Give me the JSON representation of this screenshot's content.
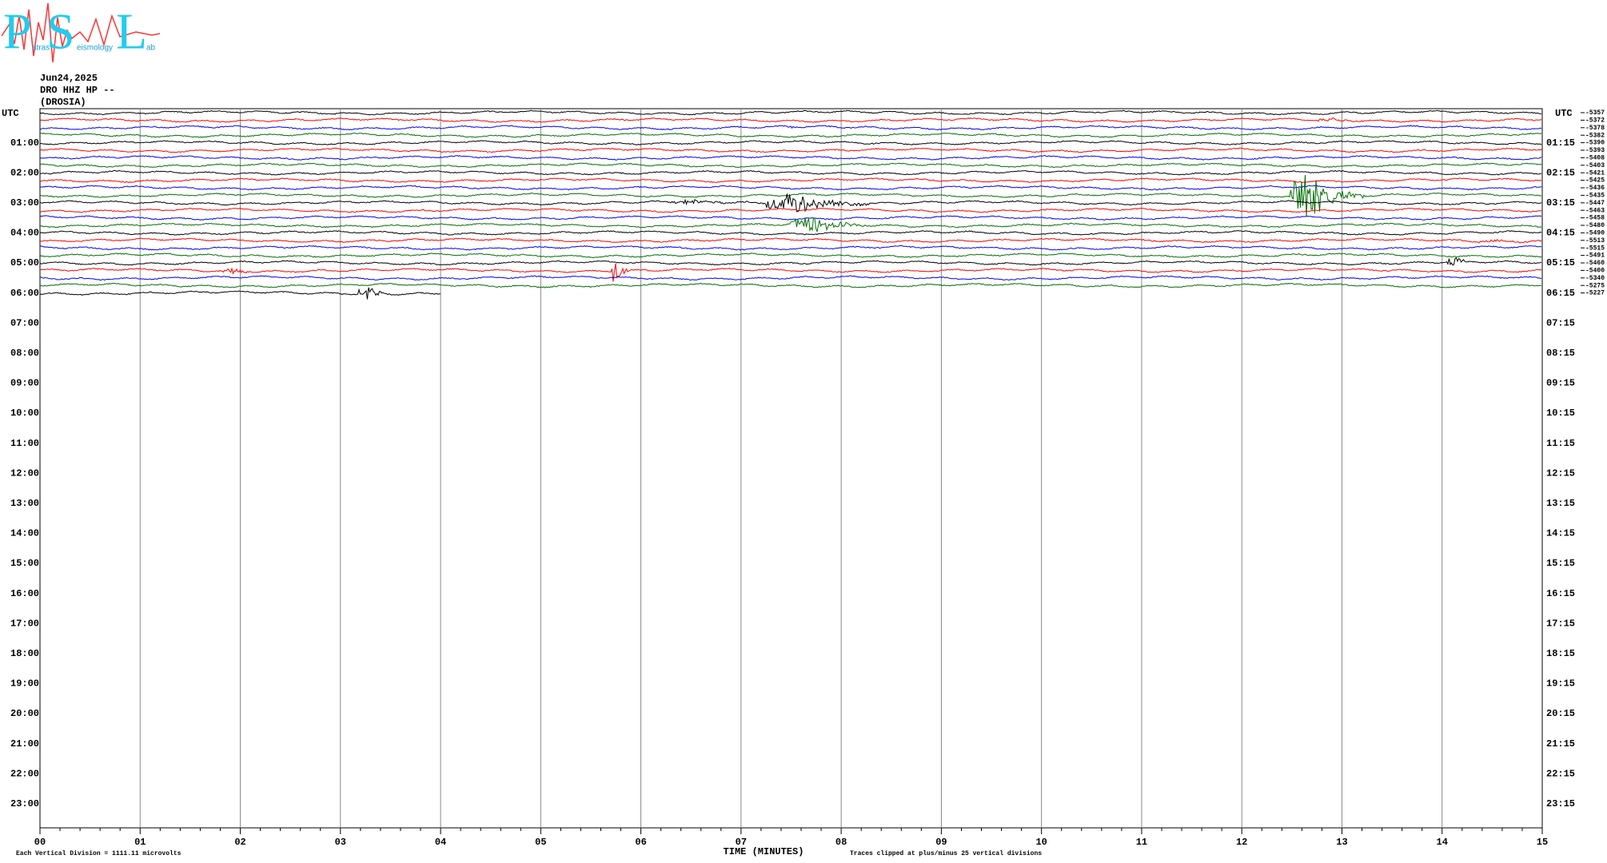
{
  "logo": {
    "letters": [
      "P",
      "S",
      "L"
    ],
    "words": [
      "atras",
      "eismology",
      "ab"
    ]
  },
  "chart_data": {
    "type": "helicorder",
    "date": "Jun24,2025",
    "station": "DRO HHZ HP --",
    "location": "(DROSIA)",
    "left_axis_title": "UTC",
    "right_axis_title": "UTC",
    "left_labels": [
      "01:00",
      "02:00",
      "03:00",
      "04:00",
      "05:00",
      "06:00",
      "07:00",
      "08:00",
      "09:00",
      "10:00",
      "11:00",
      "12:00",
      "13:00",
      "14:00",
      "15:00",
      "16:00",
      "17:00",
      "18:00",
      "19:00",
      "20:00",
      "21:00",
      "22:00",
      "23:00"
    ],
    "right_labels": [
      "01:15",
      "02:15",
      "03:15",
      "04:15",
      "05:15",
      "06:15",
      "07:15",
      "08:15",
      "09:15",
      "10:15",
      "11:15",
      "12:15",
      "13:15",
      "14:15",
      "15:15",
      "16:15",
      "17:15",
      "18:15",
      "19:15",
      "20:15",
      "21:15",
      "22:15",
      "23:15"
    ],
    "trace_offsets": [
      -5357,
      -5372,
      -5378,
      -5382,
      -5390,
      -5393,
      -5408,
      -5403,
      -5421,
      -5425,
      -5436,
      -5435,
      -5447,
      -5463,
      -5458,
      -5480,
      -5490,
      -5513,
      -5515,
      -5491,
      -5460,
      -5400,
      -5340,
      -5275,
      -5227
    ],
    "trace_colors": [
      "#000000",
      "#ff0000",
      "#0000ff",
      "#007000"
    ],
    "x_ticks": [
      "00",
      "01",
      "02",
      "03",
      "04",
      "05",
      "06",
      "07",
      "08",
      "09",
      "10",
      "11",
      "12",
      "13",
      "14",
      "15"
    ],
    "x_label": "TIME (MINUTES)",
    "scale_note": "Each Vertical Division = 1111.11 microvolts",
    "clip_note": "Traces clipped at plus/minus 25 vertical divisions"
  }
}
